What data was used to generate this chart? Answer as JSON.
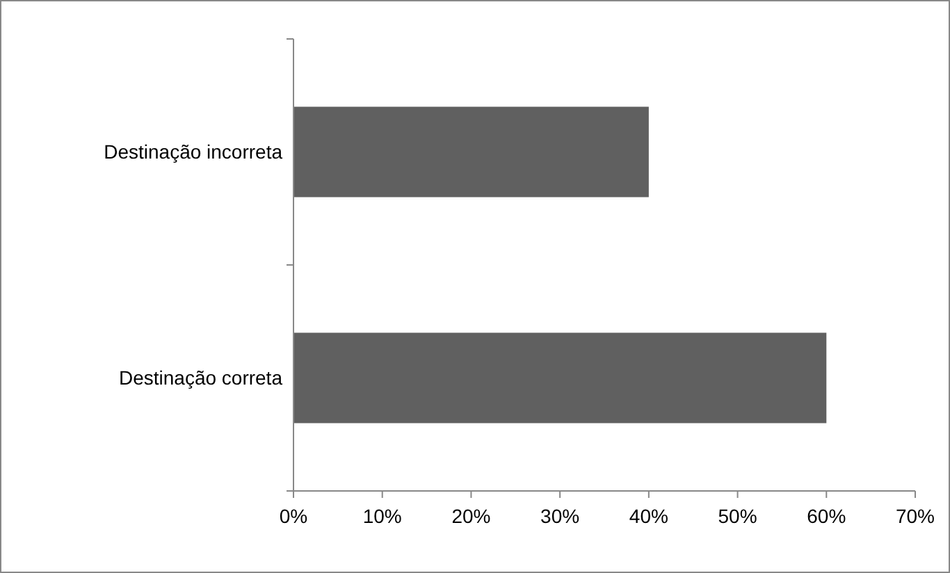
{
  "chart_data": {
    "type": "bar",
    "orientation": "horizontal",
    "categories": [
      "Destinação incorreta",
      "Destinação correta"
    ],
    "values": [
      40,
      60
    ],
    "color": "#606060",
    "xlim": [
      0,
      70
    ],
    "xticks": [
      {
        "value": 0,
        "label": "0%"
      },
      {
        "value": 10,
        "label": "10%"
      },
      {
        "value": 20,
        "label": "20%"
      },
      {
        "value": 30,
        "label": "30%"
      },
      {
        "value": 40,
        "label": "40%"
      },
      {
        "value": 50,
        "label": "50%"
      },
      {
        "value": 60,
        "label": "60%"
      },
      {
        "value": 70,
        "label": "70%"
      }
    ],
    "grid": false
  }
}
